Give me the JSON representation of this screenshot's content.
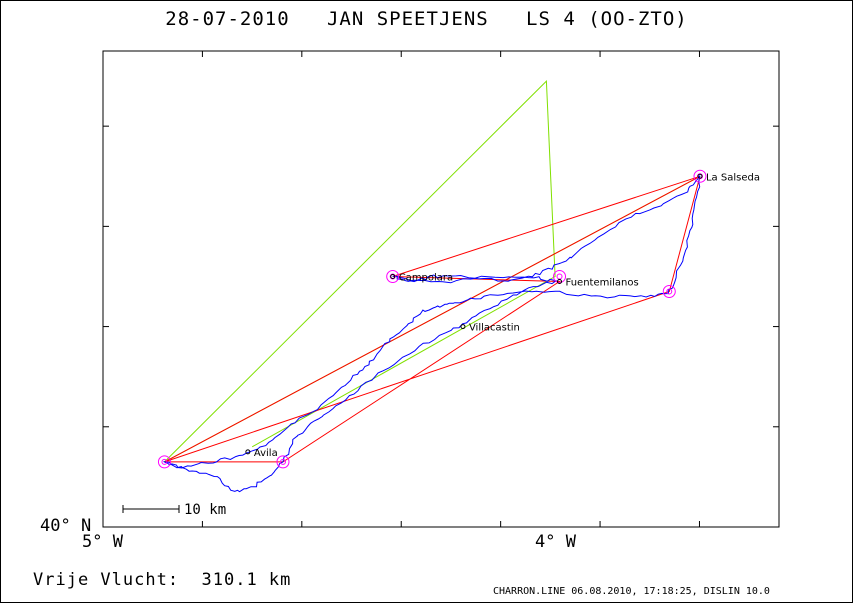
{
  "title": "28-07-2010   JAN SPEETJENS   LS 4 (OO-ZTO)",
  "axes": {
    "lat_label": "40° N",
    "lon_left_label": "5° W",
    "lon_right_label": "4° W"
  },
  "scale_bar": {
    "label": "10 km"
  },
  "footer": {
    "distance": "Vrije Vlucht:  310.1 km",
    "credit": "CHARRON.LINE 06.08.2010, 17:18:25, DISLIN 10.0"
  },
  "places": [
    {
      "name": "La Salseda",
      "lon": -3.67,
      "lat": 40.72
    },
    {
      "name": "Campolara",
      "lon": -4.37,
      "lat": 40.52
    },
    {
      "name": "Fuentemilanos",
      "lon": -3.99,
      "lat": 40.51
    },
    {
      "name": "Villacastin",
      "lon": -4.21,
      "lat": 40.42
    },
    {
      "name": "Avila",
      "lon": -4.7,
      "lat": 40.17
    }
  ],
  "turnpoints": [
    {
      "lon": -4.89,
      "lat": 40.15
    },
    {
      "lon": -4.62,
      "lat": 40.15
    },
    {
      "lon": -4.37,
      "lat": 40.52
    },
    {
      "lon": -3.99,
      "lat": 40.52
    },
    {
      "lon": -3.67,
      "lat": 40.72
    },
    {
      "lon": -3.74,
      "lat": 40.49
    }
  ],
  "colors": {
    "track": "#0000ff",
    "task_line": "#ff0000",
    "optimized_line": "#80e000",
    "turnpoint_circle": "#ff00ff",
    "frame": "#000000"
  },
  "chart_data": {
    "type": "map",
    "xlim": [
      -5.03,
      -3.49
    ],
    "ylim": [
      40.02,
      40.97
    ],
    "x_ticks": [
      -5,
      -4
    ],
    "y_ticks": [
      40
    ],
    "task_route": [
      [
        -4.89,
        40.15
      ],
      [
        -3.67,
        40.72
      ],
      [
        -4.37,
        40.52
      ],
      [
        -3.99,
        40.51
      ],
      [
        -4.62,
        40.15
      ],
      [
        -4.89,
        40.15
      ],
      [
        -3.74,
        40.49
      ],
      [
        -3.67,
        40.72
      ]
    ],
    "optimized_route": [
      [
        -4.89,
        40.15
      ],
      [
        -3.67,
        40.72
      ],
      [
        -4.89,
        40.15
      ],
      [
        -4.02,
        40.91
      ],
      [
        -4.0,
        40.52
      ],
      [
        -4.69,
        40.18
      ],
      [
        -4.0,
        40.52
      ]
    ],
    "track": [
      [
        -4.62,
        40.15
      ],
      [
        -4.65,
        40.12
      ],
      [
        -4.69,
        40.1
      ],
      [
        -4.73,
        40.09
      ],
      [
        -4.77,
        40.12
      ],
      [
        -4.82,
        40.13
      ],
      [
        -4.86,
        40.14
      ],
      [
        -4.89,
        40.15
      ],
      [
        -4.85,
        40.14
      ],
      [
        -4.78,
        40.15
      ],
      [
        -4.72,
        40.16
      ],
      [
        -4.66,
        40.18
      ],
      [
        -4.61,
        40.22
      ],
      [
        -4.55,
        40.25
      ],
      [
        -4.5,
        40.29
      ],
      [
        -4.46,
        40.32
      ],
      [
        -4.42,
        40.35
      ],
      [
        -4.38,
        40.39
      ],
      [
        -4.34,
        40.42
      ],
      [
        -4.3,
        40.45
      ],
      [
        -4.26,
        40.46
      ],
      [
        -4.22,
        40.47
      ],
      [
        -4.16,
        40.48
      ],
      [
        -4.08,
        40.49
      ],
      [
        -4.0,
        40.49
      ],
      [
        -3.92,
        40.48
      ],
      [
        -3.84,
        40.48
      ],
      [
        -3.77,
        40.48
      ],
      [
        -3.74,
        40.49
      ],
      [
        -3.71,
        40.55
      ],
      [
        -3.69,
        40.61
      ],
      [
        -3.68,
        40.66
      ],
      [
        -3.67,
        40.72
      ],
      [
        -3.7,
        40.69
      ],
      [
        -3.76,
        40.66
      ],
      [
        -3.83,
        40.64
      ],
      [
        -3.9,
        40.6
      ],
      [
        -3.96,
        40.56
      ],
      [
        -4.0,
        40.54
      ],
      [
        -4.05,
        40.52
      ],
      [
        -4.12,
        40.51
      ],
      [
        -4.2,
        40.52
      ],
      [
        -4.28,
        40.52
      ],
      [
        -4.33,
        40.51
      ],
      [
        -4.37,
        40.52
      ],
      [
        -4.32,
        40.51
      ],
      [
        -4.24,
        40.51
      ],
      [
        -4.15,
        40.52
      ],
      [
        -4.06,
        40.52
      ],
      [
        -4.0,
        40.51
      ],
      [
        -4.05,
        40.5
      ],
      [
        -4.12,
        40.47
      ],
      [
        -4.18,
        40.44
      ],
      [
        -4.24,
        40.41
      ],
      [
        -4.31,
        40.38
      ],
      [
        -4.38,
        40.34
      ],
      [
        -4.44,
        40.3
      ],
      [
        -4.5,
        40.26
      ],
      [
        -4.55,
        40.23
      ],
      [
        -4.59,
        40.2
      ],
      [
        -4.62,
        40.15
      ]
    ]
  }
}
